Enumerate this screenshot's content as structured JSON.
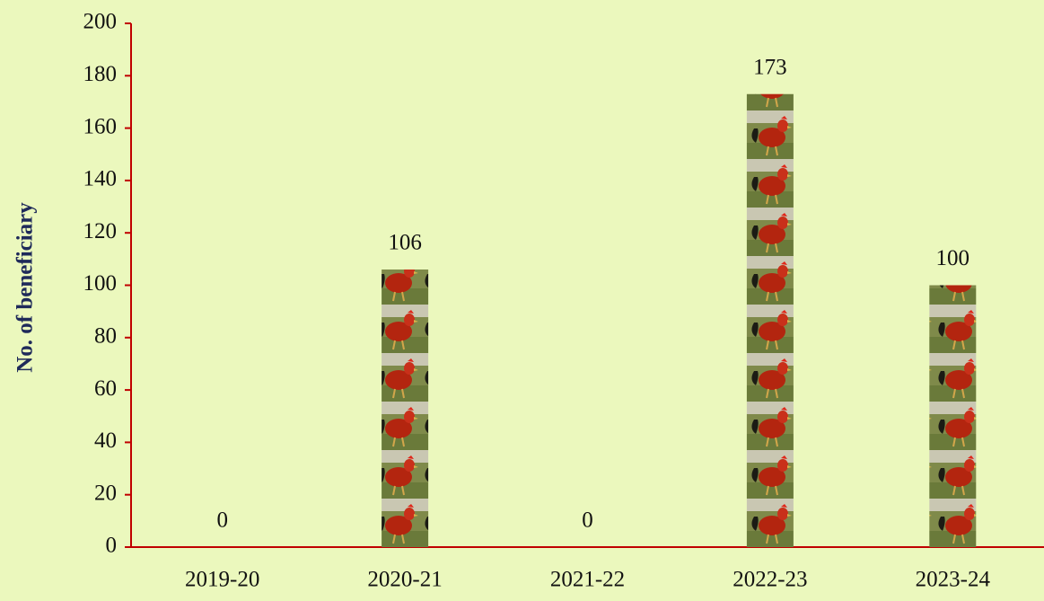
{
  "chart_data": {
    "type": "bar",
    "y_label": "No. of beneficiary",
    "categories": [
      "2019-20",
      "2020-21",
      "2021-22",
      "2022-23",
      "2023-24"
    ],
    "values": [
      0,
      106,
      0,
      173,
      100
    ],
    "ylim": [
      0,
      200
    ],
    "yticks": [
      0,
      20,
      40,
      60,
      80,
      100,
      120,
      140,
      160,
      180,
      200
    ]
  }
}
